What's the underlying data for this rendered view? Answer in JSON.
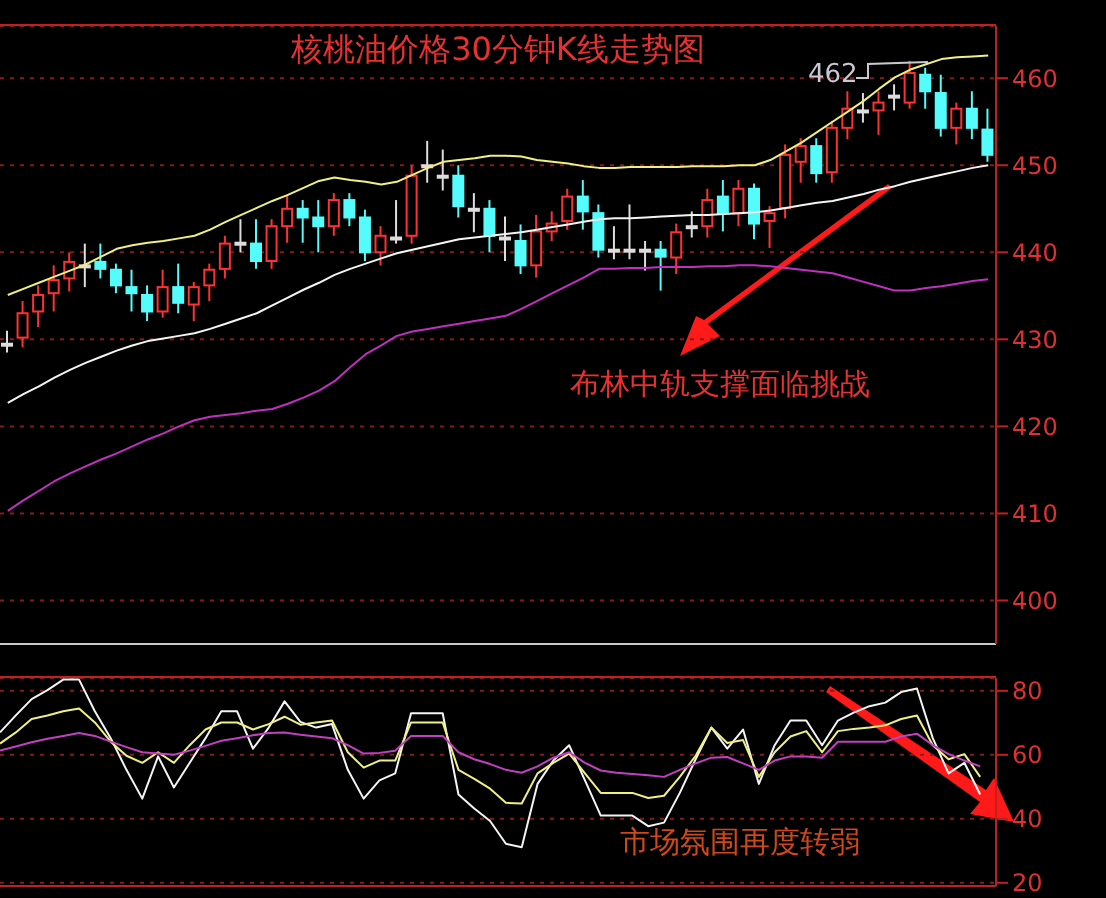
{
  "chart_data": [
    {
      "type": "candlestick",
      "title": "核桃油价格30分钟K线走势图",
      "categories": [
        null,
        null,
        null,
        null,
        null,
        null,
        null,
        null,
        null,
        null,
        null,
        null,
        null,
        null,
        null,
        null,
        null,
        null,
        null,
        null,
        null,
        null,
        null,
        null,
        null,
        null,
        null,
        null,
        null,
        null,
        null,
        null,
        null,
        null,
        null,
        null,
        null,
        null,
        null,
        null,
        null,
        null,
        null,
        null,
        null,
        null,
        null,
        null,
        null,
        null,
        null,
        null,
        null,
        null,
        null,
        null,
        null,
        null,
        null,
        null,
        null,
        null,
        null,
        null
      ],
      "ohlc": [
        [
          429.5,
          431,
          428.5,
          429.5
        ],
        [
          430.2,
          434.4,
          429.1,
          433
        ],
        [
          433.2,
          436.2,
          431.4,
          435.1
        ],
        [
          435.3,
          438.5,
          433.2,
          436.8
        ],
        [
          437,
          440,
          435.5,
          438.9
        ],
        [
          438.5,
          441,
          436,
          438.5
        ],
        [
          438.9,
          441,
          437,
          438.1
        ],
        [
          438,
          438.7,
          435.3,
          436.2
        ],
        [
          436,
          438,
          433.2,
          435.3
        ],
        [
          435.1,
          436.2,
          432.1,
          433.2
        ],
        [
          433.2,
          438,
          432.5,
          436
        ],
        [
          436,
          438.7,
          433,
          434.2
        ],
        [
          434,
          436.6,
          432.1,
          436
        ],
        [
          436.2,
          438.7,
          434.4,
          438
        ],
        [
          438.1,
          441.9,
          437,
          441
        ],
        [
          441.1,
          443.8,
          440,
          441.1
        ],
        [
          441,
          443.8,
          438.1,
          439
        ],
        [
          439,
          443.8,
          438.1,
          443
        ],
        [
          443,
          446.5,
          441.1,
          445
        ],
        [
          445,
          446,
          441.1,
          444
        ],
        [
          444,
          446,
          440,
          443
        ],
        [
          443,
          446.8,
          441.9,
          446
        ],
        [
          446,
          446.8,
          443,
          444
        ],
        [
          444,
          444.9,
          439,
          440
        ],
        [
          440,
          443,
          438.5,
          441.9
        ],
        [
          441.7,
          446,
          441,
          441.7
        ],
        [
          441.9,
          450,
          441,
          448.8
        ],
        [
          450,
          452.8,
          448,
          450
        ],
        [
          448.8,
          451.8,
          447.1,
          448.8
        ],
        [
          448.8,
          450,
          444,
          445.3
        ],
        [
          445,
          446.8,
          442.3,
          445
        ],
        [
          445,
          446,
          440,
          441.9
        ],
        [
          441.7,
          444.1,
          439,
          441.7
        ],
        [
          441.3,
          443.2,
          437.5,
          438.5
        ],
        [
          438.5,
          444.3,
          437.1,
          442.4
        ],
        [
          442.4,
          444.7,
          441.3,
          443.3
        ],
        [
          443.6,
          447.3,
          442.6,
          446.4
        ],
        [
          446.4,
          448.3,
          442.6,
          444.7
        ],
        [
          444.5,
          445.5,
          439.4,
          440.3
        ],
        [
          440.3,
          443,
          439.2,
          440.3
        ],
        [
          440.3,
          445.5,
          439.2,
          440.3
        ],
        [
          440.3,
          441.3,
          437.9,
          440.3
        ],
        [
          440.3,
          441.3,
          435.6,
          439.5
        ],
        [
          439.4,
          443.3,
          437.5,
          442.3
        ],
        [
          443,
          444.7,
          441.7,
          443
        ],
        [
          443,
          447.3,
          441.7,
          446
        ],
        [
          446.4,
          448.3,
          442.4,
          444.5
        ],
        [
          444.5,
          448.3,
          443,
          447.3
        ],
        [
          447.3,
          447.9,
          441.5,
          443.3
        ],
        [
          443.6,
          445.3,
          440.5,
          444.5
        ],
        [
          445.1,
          452.4,
          443.9,
          451.2
        ],
        [
          450.4,
          453.1,
          448,
          452.2
        ],
        [
          452.2,
          453.1,
          448,
          449.1
        ],
        [
          449.2,
          455.1,
          448,
          454.3
        ],
        [
          454.3,
          458.5,
          453,
          456.5
        ],
        [
          456.3,
          458.3,
          454.9,
          456.3
        ],
        [
          456.3,
          458.5,
          453.5,
          457.2
        ],
        [
          458,
          459.3,
          456.3,
          458
        ],
        [
          457.2,
          462,
          456.5,
          460.6
        ],
        [
          460.4,
          461.2,
          456.5,
          458.5
        ],
        [
          458.3,
          460.4,
          453.3,
          454.3
        ],
        [
          454.3,
          457.2,
          452.4,
          456.5
        ],
        [
          456.5,
          458.5,
          453,
          454.3
        ],
        [
          454.1,
          456.5,
          450.4,
          451.2
        ]
      ],
      "colors": [
        "#dddddd",
        "#ff3232",
        "#ff3232",
        "#ff3232",
        "#ff3232",
        "#dddddd",
        "#54fcfc",
        "#54fcfc",
        "#54fcfc",
        "#54fcfc",
        "#ff3232",
        "#54fcfc",
        "#ff3232",
        "#ff3232",
        "#ff3232",
        "#dddddd",
        "#54fcfc",
        "#ff3232",
        "#ff3232",
        "#54fcfc",
        "#54fcfc",
        "#ff3232",
        "#54fcfc",
        "#54fcfc",
        "#ff3232",
        "#dddddd",
        "#ff3232",
        "#dddddd",
        "#dddddd",
        "#54fcfc",
        "#dddddd",
        "#54fcfc",
        "#dddddd",
        "#54fcfc",
        "#ff3232",
        "#ff3232",
        "#ff3232",
        "#54fcfc",
        "#54fcfc",
        "#dddddd",
        "#dddddd",
        "#dddddd",
        "#54fcfc",
        "#ff3232",
        "#dddddd",
        "#ff3232",
        "#54fcfc",
        "#ff3232",
        "#54fcfc",
        "#ff3232",
        "#ff3232",
        "#ff3232",
        "#54fcfc",
        "#ff3232",
        "#ff3232",
        "#dddddd",
        "#ff3232",
        "#dddddd",
        "#ff3232",
        "#54fcfc",
        "#54fcfc",
        "#ff3232",
        "#54fcfc",
        "#54fcfc"
      ],
      "series": [
        {
          "type": "line",
          "color": "#f0f080",
          "values": [
            435.1,
            435.8,
            436.5,
            437.2,
            437.9,
            438.6,
            439.5,
            440.4,
            440.8,
            441.1,
            441.3,
            441.6,
            441.9,
            442.6,
            443.5,
            444.3,
            445.1,
            445.9,
            446.6,
            447.4,
            448.2,
            448.6,
            448.3,
            448.1,
            447.8,
            448.1,
            448.9,
            449.7,
            450.4,
            450.6,
            450.8,
            451.1,
            451.1,
            451,
            450.6,
            450.4,
            450.2,
            449.9,
            449.7,
            449.7,
            449.8,
            449.8,
            449.8,
            449.8,
            449.9,
            449.9,
            449.9,
            450,
            450,
            450.6,
            451.6,
            452.6,
            453.8,
            455,
            456.2,
            457.4,
            458.8,
            460.1,
            461,
            461.6,
            462.2,
            462.4,
            462.5,
            462.6
          ]
        },
        {
          "type": "line",
          "color": "#f4f4f4",
          "values": [
            422.7,
            423.7,
            424.6,
            425.6,
            426.5,
            427.3,
            428,
            428.7,
            429.3,
            429.8,
            430.1,
            430.4,
            430.7,
            431.2,
            431.8,
            432.4,
            433,
            433.9,
            434.8,
            435.7,
            436.5,
            437.4,
            438.1,
            438.7,
            439.3,
            439.9,
            440.3,
            440.7,
            441.1,
            441.5,
            441.7,
            441.9,
            442.1,
            442.3,
            442.6,
            442.9,
            443.2,
            443.5,
            443.8,
            443.9,
            443.9,
            444,
            444.1,
            444.2,
            444.3,
            444.3,
            444.4,
            444.5,
            444.6,
            444.8,
            445.1,
            445.4,
            445.7,
            445.9,
            446.3,
            446.7,
            447.2,
            447.6,
            448.1,
            448.5,
            448.9,
            449.3,
            449.7,
            450
          ]
        },
        {
          "type": "line",
          "color": "#c030c0",
          "values": [
            410.3,
            411.5,
            412.6,
            413.7,
            414.6,
            415.4,
            416.2,
            416.9,
            417.7,
            418.5,
            419.2,
            420,
            420.7,
            421.1,
            421.3,
            421.5,
            421.8,
            422,
            422.6,
            423.3,
            424.1,
            425.2,
            426.8,
            428.3,
            429.3,
            430.4,
            430.9,
            431.2,
            431.5,
            431.8,
            432.1,
            432.4,
            432.7,
            433.5,
            434.4,
            435.3,
            436.2,
            437.1,
            438.1,
            438.1,
            438.2,
            438.2,
            438.3,
            438.3,
            438.3,
            438.4,
            438.4,
            438.5,
            438.5,
            438.4,
            438.2,
            438,
            437.8,
            437.6,
            437.1,
            436.6,
            436.1,
            435.6,
            435.6,
            435.9,
            436.1,
            436.4,
            436.7,
            436.9
          ]
        }
      ],
      "ylim": [
        395,
        466
      ],
      "yticks": [
        400,
        410,
        420,
        430,
        440,
        450,
        460
      ],
      "grid": "y",
      "tick_labels": "y",
      "annotations": [
        "布林中轨支撑面临挑战",
        "462"
      ]
    },
    {
      "type": "line",
      "categories": [
        null,
        null,
        null,
        null,
        null,
        null,
        null,
        null,
        null,
        null,
        null,
        null,
        null,
        null,
        null,
        null,
        null,
        null,
        null,
        null,
        null,
        null,
        null,
        null,
        null,
        null,
        null,
        null,
        null,
        null,
        null,
        null,
        null,
        null,
        null,
        null,
        null,
        null,
        null,
        null,
        null,
        null,
        null,
        null,
        null,
        null,
        null,
        null,
        null,
        null,
        null,
        null,
        null,
        null,
        null,
        null,
        null,
        null,
        null,
        null,
        null,
        null,
        null,
        null
      ],
      "series": [
        {
          "color": "#f4f4f4",
          "values": [
            67,
            72.3,
            77.4,
            80.2,
            83.5,
            83.5,
            73.6,
            65.2,
            55.3,
            46.3,
            59.5,
            49.8,
            57.5,
            65.2,
            73.6,
            73.6,
            61.9,
            68.5,
            76.7,
            70.3,
            68.5,
            69.6,
            55.3,
            46.3,
            52,
            54.2,
            73,
            73,
            73,
            47.6,
            43.2,
            39.3,
            32.2,
            31.1,
            50.9,
            58.2,
            63,
            52,
            41,
            41,
            41,
            37.7,
            38.8,
            48.1,
            58.6,
            68.5,
            61.9,
            67.9,
            50.9,
            63,
            70.7,
            70.7,
            63,
            70.7,
            73.2,
            75.2,
            76.3,
            79.6,
            80.7,
            65.2,
            54.2,
            57.5,
            47.6,
            null
          ]
        },
        {
          "color": "#f0f080",
          "values": [
            63.5,
            67,
            71.2,
            72.3,
            73.6,
            74.5,
            70.1,
            64.1,
            59.7,
            57.5,
            60.8,
            57.5,
            63,
            67.9,
            70.1,
            70.1,
            67.9,
            69.6,
            71.9,
            69.4,
            70.1,
            70.7,
            60.8,
            56,
            58.2,
            58.2,
            70.1,
            70.1,
            70.1,
            55.3,
            52.5,
            49.4,
            45,
            44.8,
            54.2,
            57.5,
            60.4,
            54.2,
            48.1,
            48.1,
            48.1,
            46.5,
            47.2,
            53.1,
            59.7,
            68.5,
            63.7,
            64.6,
            53.1,
            60.8,
            65.7,
            67.4,
            60.8,
            67.4,
            68.1,
            68.5,
            69.2,
            71.2,
            72.3,
            63,
            58.6,
            60.2,
            53.1,
            null
          ]
        },
        {
          "color": "#c040c0",
          "values": [
            61.3,
            62.6,
            63.9,
            65,
            65.9,
            66.8,
            65.9,
            64.1,
            62.4,
            60.8,
            60.4,
            60,
            61.3,
            62.8,
            64.4,
            65.2,
            66.1,
            66.8,
            67,
            66.3,
            65.7,
            65.2,
            63,
            60.4,
            60.6,
            61.3,
            65.9,
            65.9,
            65.9,
            60.8,
            58.6,
            57.1,
            55.3,
            54.4,
            56.4,
            59.1,
            60.8,
            57.5,
            55.1,
            54.4,
            54,
            53.6,
            53.1,
            55.3,
            57.3,
            59.1,
            59.3,
            57.3,
            55.3,
            58.2,
            59.5,
            59.5,
            59.1,
            64.1,
            64.1,
            64.1,
            64.1,
            65.7,
            66.6,
            63,
            60.2,
            58.2,
            56.4,
            null
          ]
        }
      ],
      "ylim": [
        19,
        84
      ],
      "yticks": [
        20,
        40,
        60,
        80
      ],
      "grid": "y",
      "tick_labels": "y",
      "annotations": [
        "市场氛围再度转弱"
      ]
    }
  ]
}
